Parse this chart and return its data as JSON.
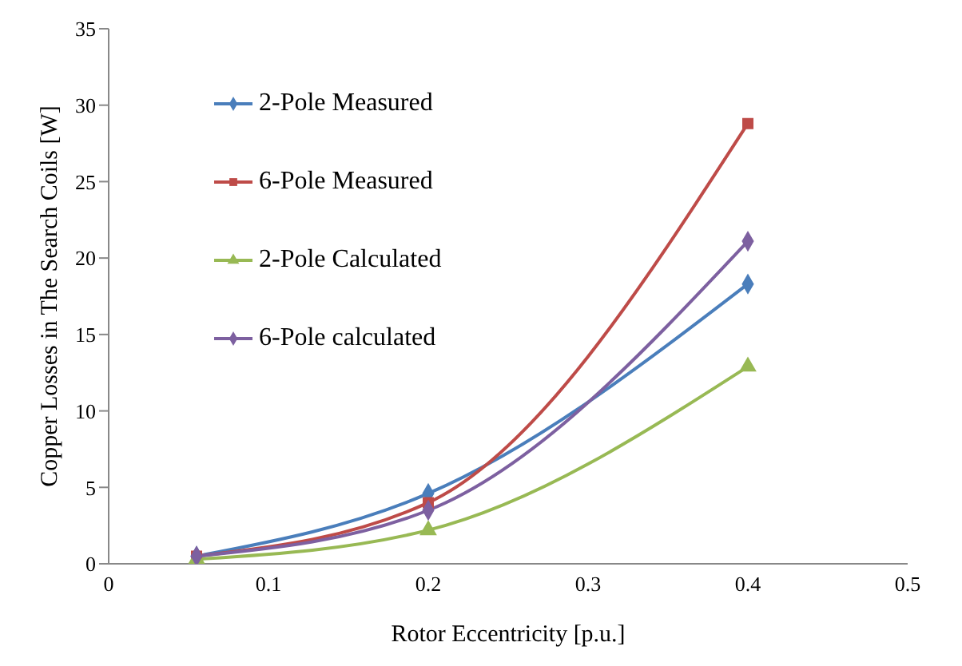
{
  "chart_data": {
    "type": "line",
    "xlabel": "Rotor Eccentricity  [p.u.]",
    "ylabel": "Copper Losses in The Search Coils [W]",
    "x": [
      0.055,
      0.2,
      0.4
    ],
    "series": [
      {
        "name": "2-Pole Measured",
        "color": "#4a7ebb",
        "marker": "diamond",
        "values": [
          0.5,
          4.6,
          18.3
        ]
      },
      {
        "name": "6-Pole Measured",
        "color": "#be4b48",
        "marker": "square",
        "values": [
          0.5,
          4.0,
          28.8
        ]
      },
      {
        "name": "2-Pole Calculated",
        "color": "#98b954",
        "marker": "triangle",
        "values": [
          0.3,
          2.2,
          12.9
        ]
      },
      {
        "name": "6-Pole calculated",
        "color": "#7d60a0",
        "marker": "diamond",
        "values": [
          0.5,
          3.5,
          21.1
        ]
      }
    ],
    "xlim": [
      0,
      0.5
    ],
    "xticks": [
      0,
      0.1,
      0.2,
      0.3,
      0.4,
      0.5
    ],
    "ylim": [
      0,
      35
    ],
    "yticks": [
      0,
      5,
      10,
      15,
      20,
      25,
      30,
      35
    ],
    "grid": false,
    "legend": "top left"
  }
}
